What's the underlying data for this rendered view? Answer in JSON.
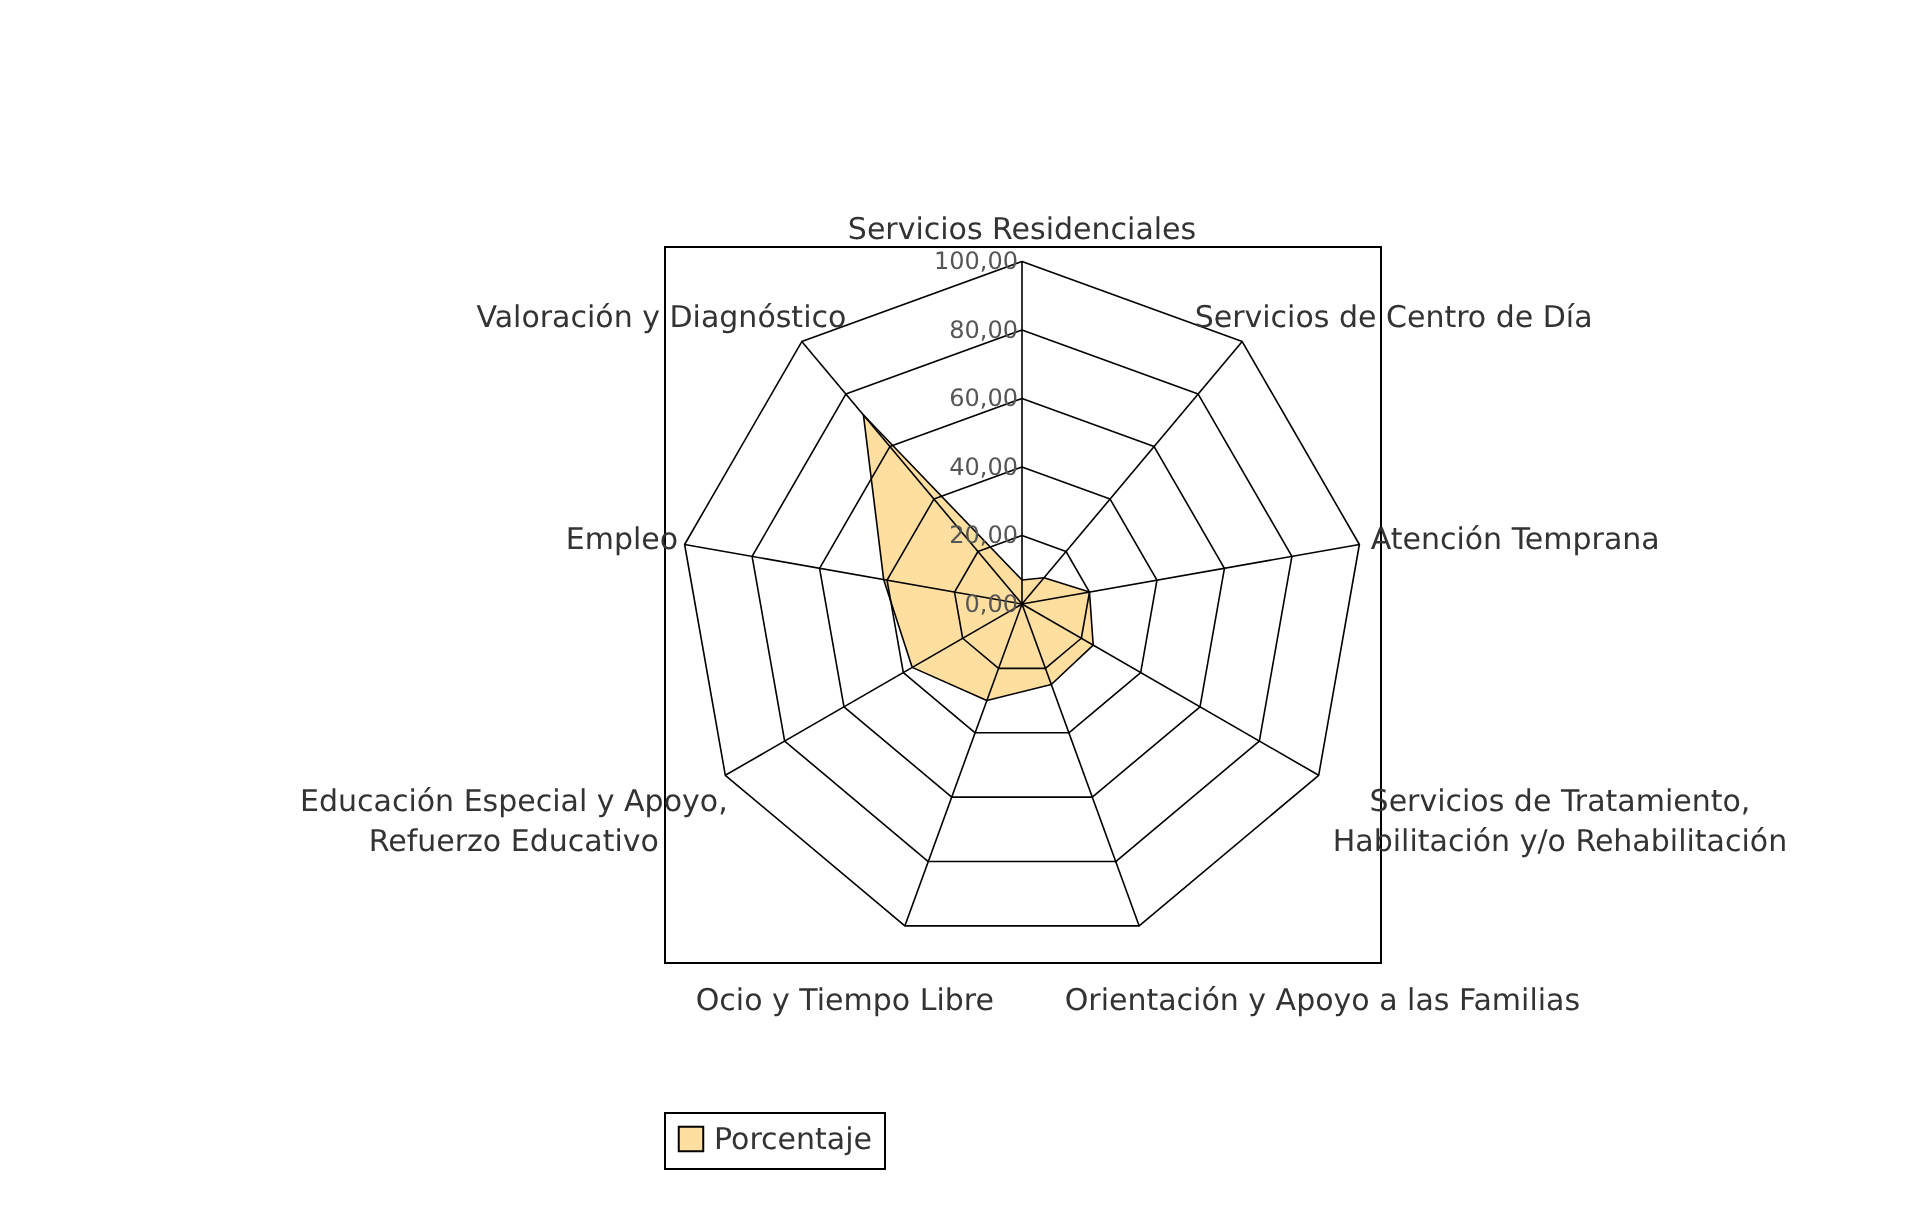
{
  "chart_data": {
    "type": "radar",
    "categories": [
      "Servicios Residenciales",
      "Servicios de Centro de Día",
      "Atención Temprana",
      "Servicios de Tratamiento,\nHabilitación y/o Rehabilitación",
      "Orientación y Apoyo a las Familias",
      "Ocio y Tiempo Libre",
      "Educación Especial y Apoyo,\nRefuerzo Educativo",
      "Empleo",
      "Valoración y Diagnóstico"
    ],
    "series": [
      {
        "name": "Porcentaje",
        "color": "#ffdf9f",
        "values": [
          7,
          10,
          20,
          24,
          25,
          30,
          37,
          41,
          72
        ]
      }
    ],
    "ylim": [
      0,
      100
    ],
    "yticks": [
      {
        "value": 0,
        "label": "0,00"
      },
      {
        "value": 20,
        "label": "20,00"
      },
      {
        "value": 40,
        "label": "40,00"
      },
      {
        "value": 60,
        "label": "60,00"
      },
      {
        "value": 80,
        "label": "80,00"
      },
      {
        "value": 100,
        "label": "100,00"
      }
    ],
    "grid": true,
    "legend": "bottom"
  }
}
